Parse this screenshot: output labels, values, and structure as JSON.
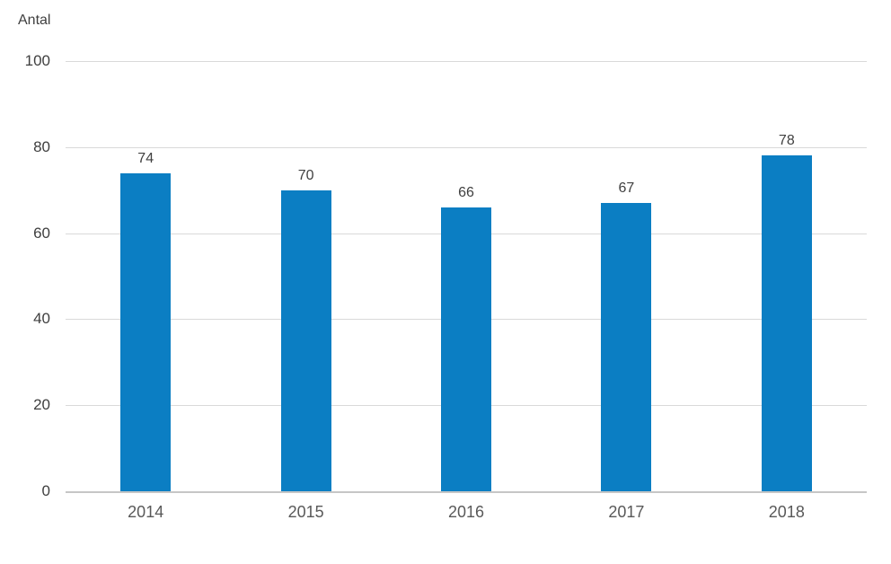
{
  "chart_data": {
    "type": "bar",
    "title": "",
    "ylabel": "Antal",
    "xlabel": "",
    "categories": [
      "2014",
      "2015",
      "2016",
      "2017",
      "2018"
    ],
    "values": [
      74,
      70,
      66,
      67,
      78
    ],
    "data_labels": [
      "74",
      "70",
      "66",
      "67",
      "78"
    ],
    "ylim": [
      0,
      100
    ],
    "yticks": [
      0,
      20,
      40,
      60,
      80,
      100
    ],
    "grid": true,
    "legend": "none",
    "colors": {
      "bar": "#0b7ec3",
      "gridline": "#d9d9d9",
      "axis_line": "#c6c6c6",
      "ytick_label": "#3f3f3f",
      "xtick_label": "#595959",
      "data_label": "#404040",
      "background": "#ffffff"
    }
  }
}
